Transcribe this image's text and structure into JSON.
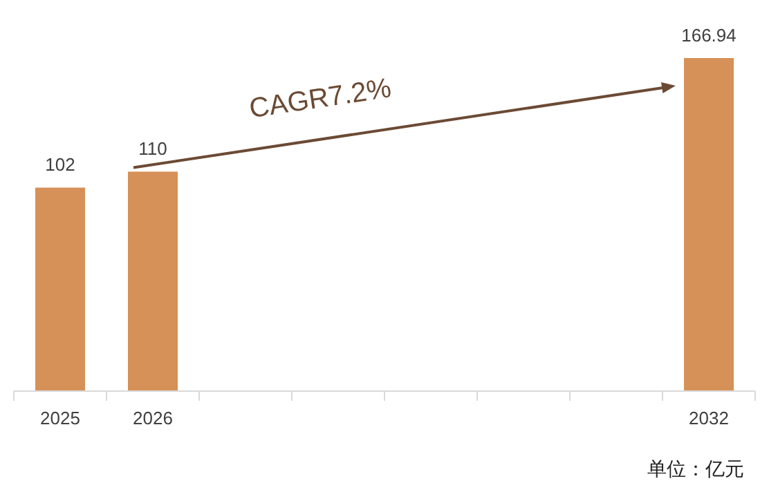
{
  "chart_data": {
    "type": "bar",
    "categories": [
      "2025",
      "2026",
      null,
      null,
      null,
      null,
      null,
      "2032"
    ],
    "values": [
      102,
      110,
      null,
      null,
      null,
      null,
      null,
      166.94
    ],
    "color": "#d69158",
    "data_labels": true,
    "annotations": [
      "CAGR7.2%",
      "单位：亿元"
    ]
  }
}
